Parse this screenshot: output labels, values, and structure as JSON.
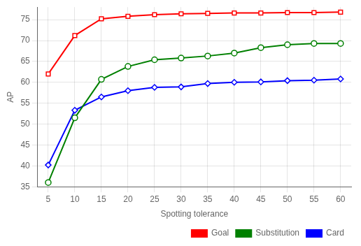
{
  "chart_data": {
    "type": "line",
    "xlabel": "Spotting tolerance",
    "ylabel": "AP",
    "x": [
      5,
      10,
      15,
      20,
      25,
      30,
      35,
      40,
      45,
      50,
      55,
      60
    ],
    "series": [
      {
        "name": "Goal",
        "color": "#ff0000",
        "marker": "square",
        "values": [
          62.0,
          71.2,
          75.2,
          75.8,
          76.2,
          76.4,
          76.5,
          76.6,
          76.6,
          76.7,
          76.7,
          76.8
        ]
      },
      {
        "name": "Substitution",
        "color": "#008000",
        "marker": "circle",
        "values": [
          36.0,
          51.5,
          60.7,
          63.8,
          65.4,
          65.8,
          66.3,
          67.0,
          68.3,
          69.0,
          69.3,
          69.3
        ]
      },
      {
        "name": "Card",
        "color": "#0000ff",
        "marker": "diamond",
        "values": [
          40.2,
          53.3,
          56.5,
          58.0,
          58.8,
          58.9,
          59.7,
          60.0,
          60.1,
          60.4,
          60.5,
          60.8
        ]
      }
    ],
    "xlim": [
      3,
      62
    ],
    "xticks": [
      5,
      10,
      15,
      20,
      25,
      30,
      35,
      40,
      45,
      50,
      55,
      60
    ],
    "ylim": [
      35,
      78
    ],
    "yticks": [
      35,
      40,
      45,
      50,
      55,
      60,
      65,
      70,
      75
    ],
    "grid": true,
    "legend": "lower right"
  }
}
